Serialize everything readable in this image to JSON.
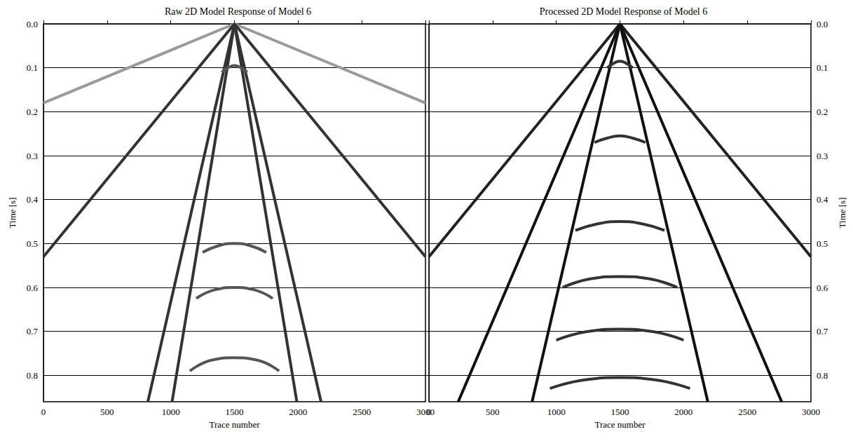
{
  "chart_data": [
    {
      "type": "line",
      "title": "Raw 2D Model Response of Model 6",
      "x_label": "Trace number",
      "y_label": "Time [s]",
      "xlim": [
        0,
        3000
      ],
      "xticks": [
        0,
        500,
        1000,
        1500,
        2000,
        2500,
        3000
      ],
      "ylim": [
        0,
        0.86
      ],
      "yticks": [
        {
          "value": 0,
          "label": "0.0"
        },
        0.1,
        0.2,
        0.3,
        0.4,
        0.5,
        0.6,
        0.7,
        0.8
      ],
      "grid": true,
      "series": [
        {
          "color": "#9a9a9a",
          "x": [
            1500,
            0
          ],
          "values": [
            0,
            0.18
          ]
        },
        {
          "color": "#9a9a9a",
          "x": [
            1500,
            3000
          ],
          "values": [
            0,
            0.18
          ]
        },
        {
          "color": "#333333",
          "x": [
            1500,
            0
          ],
          "values": [
            0,
            0.53
          ]
        },
        {
          "color": "#333333",
          "x": [
            1500,
            3000
          ],
          "values": [
            0,
            0.53
          ]
        },
        {
          "color": "#333333",
          "x": [
            1500,
            820
          ],
          "values": [
            0,
            0.86
          ]
        },
        {
          "color": "#333333",
          "x": [
            1500,
            2180
          ],
          "values": [
            0,
            0.86
          ]
        },
        {
          "color": "#333333",
          "x": [
            1500,
            1010
          ],
          "values": [
            0,
            0.86
          ]
        },
        {
          "color": "#333333",
          "x": [
            1500,
            1990
          ],
          "values": [
            0,
            0.86
          ]
        },
        {
          "color": "#555555",
          "x": [
            1400,
            1450,
            1500,
            1550,
            1600
          ],
          "values": [
            0.11,
            0.1,
            0.095,
            0.1,
            0.11
          ]
        },
        {
          "color": "#555555",
          "x": [
            1250,
            1375,
            1500,
            1625,
            1750
          ],
          "values": [
            0.52,
            0.505,
            0.5,
            0.505,
            0.52
          ]
        },
        {
          "color": "#555555",
          "x": [
            1200,
            1350,
            1500,
            1650,
            1800
          ],
          "values": [
            0.625,
            0.605,
            0.6,
            0.605,
            0.625
          ]
        },
        {
          "color": "#555555",
          "x": [
            1150,
            1325,
            1500,
            1675,
            1850
          ],
          "values": [
            0.79,
            0.765,
            0.76,
            0.765,
            0.79
          ]
        }
      ]
    },
    {
      "type": "line",
      "title": "Processed 2D Model Response of Model 6",
      "x_label": "Trace number",
      "y_label": "Time [s]",
      "xlim": [
        0,
        3000
      ],
      "xticks": [
        0,
        500,
        1000,
        1500,
        2000,
        2500,
        3000
      ],
      "ylim": [
        0,
        0.86
      ],
      "yticks": [
        {
          "value": 0,
          "label": "0.0"
        },
        0.1,
        0.2,
        0.3,
        0.4,
        0.5,
        0.6,
        0.7,
        0.8
      ],
      "grid": true,
      "series": [
        {
          "color": "#222222",
          "x": [
            1500,
            0
          ],
          "values": [
            0,
            0.53
          ]
        },
        {
          "color": "#222222",
          "x": [
            1500,
            3000
          ],
          "values": [
            0,
            0.53
          ]
        },
        {
          "color": "#111111",
          "x": [
            1500,
            230
          ],
          "values": [
            0,
            0.86
          ]
        },
        {
          "color": "#111111",
          "x": [
            1500,
            2770
          ],
          "values": [
            0,
            0.86
          ]
        },
        {
          "color": "#111111",
          "x": [
            1500,
            810
          ],
          "values": [
            0,
            0.86
          ]
        },
        {
          "color": "#111111",
          "x": [
            1500,
            2190
          ],
          "values": [
            0,
            0.86
          ]
        },
        {
          "color": "#333333",
          "x": [
            1400,
            1450,
            1500,
            1550,
            1600
          ],
          "values": [
            0.1,
            0.09,
            0.085,
            0.09,
            0.1
          ]
        },
        {
          "color": "#333333",
          "x": [
            1300,
            1400,
            1500,
            1600,
            1700
          ],
          "values": [
            0.27,
            0.26,
            0.255,
            0.26,
            0.27
          ]
        },
        {
          "color": "#333333",
          "x": [
            1150,
            1325,
            1500,
            1675,
            1850
          ],
          "values": [
            0.47,
            0.455,
            0.45,
            0.455,
            0.47
          ]
        },
        {
          "color": "#333333",
          "x": [
            1050,
            1275,
            1500,
            1725,
            1950
          ],
          "values": [
            0.6,
            0.58,
            0.575,
            0.58,
            0.6
          ]
        },
        {
          "color": "#333333",
          "x": [
            1000,
            1250,
            1500,
            1750,
            2000
          ],
          "values": [
            0.72,
            0.7,
            0.695,
            0.7,
            0.72
          ]
        },
        {
          "color": "#333333",
          "x": [
            950,
            1225,
            1500,
            1775,
            2050
          ],
          "values": [
            0.83,
            0.81,
            0.805,
            0.81,
            0.83
          ]
        }
      ]
    }
  ]
}
